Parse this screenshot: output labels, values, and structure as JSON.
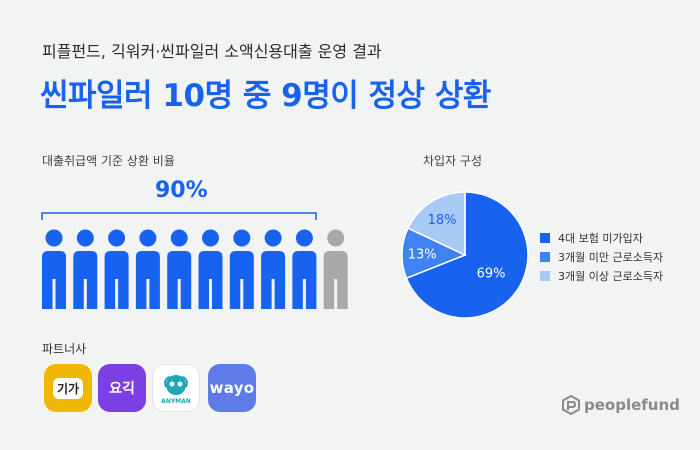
{
  "header": {
    "subtitle": "피플펀드, 긱워커·씬파일러 소액신용대출 운영 결과",
    "headline": "씬파일러 10명 중 9명이 정상 상환"
  },
  "repayment": {
    "label": "대출취급액 기준 상환 비율",
    "value_text": "90%",
    "repaid_fraction": 0.9,
    "people_total": 10,
    "people_repaid": 9,
    "colors": {
      "repaid": "#1763f0",
      "not_repaid": "#a9a9a9"
    }
  },
  "partners": {
    "label": "파트너사",
    "logos": [
      {
        "name": "giga",
        "text": "기가"
      },
      {
        "name": "yogiyo",
        "text": "요긱"
      },
      {
        "name": "anyman",
        "text": "ANYMAN"
      },
      {
        "name": "wayo",
        "text": "wayo"
      }
    ]
  },
  "composition": {
    "label": "차입자 구성"
  },
  "chart_data": {
    "type": "pie",
    "slices": [
      {
        "label": "4대 보험 미가입자",
        "value": 69,
        "display": "69%",
        "color": "#1763f0"
      },
      {
        "label": "3개월 미만 근로소득자",
        "value": 13,
        "display": "13%",
        "color": "#3f82f2"
      },
      {
        "label": "3개월 이상 근로소득자",
        "value": 18,
        "display": "18%",
        "color": "#a9c9f7"
      }
    ]
  },
  "brand": {
    "text": "peoplefund",
    "icon": "peoplefund-logo-icon"
  }
}
